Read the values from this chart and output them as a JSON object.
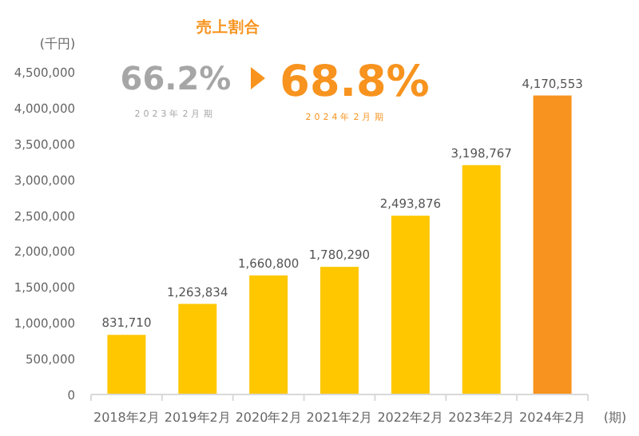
{
  "chart_data": {
    "type": "bar",
    "ylabel": "(千円)",
    "xlabel": "(期)",
    "categories": [
      "2018年2月",
      "2019年2月",
      "2020年2月",
      "2021年2月",
      "2022年2月",
      "2023年2月",
      "2024年2月"
    ],
    "values": [
      831710,
      1263834,
      1660800,
      1780290,
      2493876,
      3198767,
      4170553
    ],
    "colors": [
      "#ffc700",
      "#ffc700",
      "#ffc700",
      "#ffc700",
      "#ffc700",
      "#ffc700",
      "#f7931e"
    ],
    "value_labels": [
      "831,710",
      "1,263,834",
      "1,660,800",
      "1,780,290",
      "2,493,876",
      "3,198,767",
      "4,170,553"
    ],
    "ylim": [
      0,
      4500000
    ],
    "yticks": [
      0,
      {
        "value": 500000,
        "label": "500,000"
      },
      {
        "value": 1000000,
        "label": "1,000,000"
      },
      {
        "value": 1500000,
        "label": "1,500,000"
      },
      {
        "value": 2000000,
        "label": "2,000,000"
      },
      {
        "value": 2500000,
        "label": "2,500,000"
      },
      {
        "value": 3000000,
        "label": "3,000,000"
      },
      {
        "value": 3500000,
        "label": "3,500,000"
      },
      {
        "value": 4000000,
        "label": "4,000,000"
      },
      {
        "value": 4500000,
        "label": "4,500,000"
      }
    ],
    "annotations": [
      "売上割合",
      "66.2%",
      "2023年2月期",
      "68.8%",
      "2024年2月期"
    ]
  }
}
